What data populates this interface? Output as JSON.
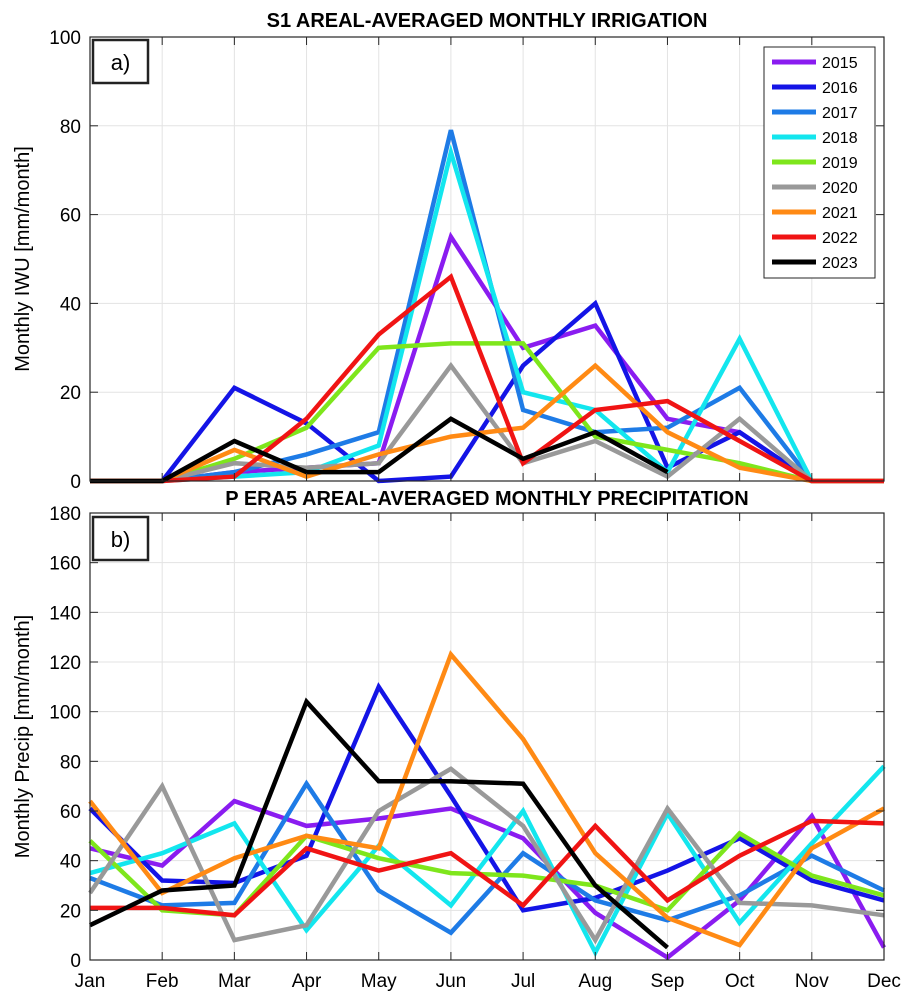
{
  "chart_data": [
    {
      "type": "line",
      "title": "S1 AREAL-AVERAGED MONTHLY IRRIGATION",
      "panel_label": "a)",
      "xlabel": "",
      "ylabel": "Monthly IWU [mm/month]",
      "categories": [
        "Jan",
        "Feb",
        "Mar",
        "Apr",
        "May",
        "Jun",
        "Jul",
        "Aug",
        "Sep",
        "Oct",
        "Nov",
        "Dec"
      ],
      "ylim": [
        0,
        100
      ],
      "yticks": [
        0,
        20,
        40,
        60,
        80,
        100
      ],
      "grid": true,
      "legend": "top-right",
      "show_xticklabels": false,
      "series": [
        {
          "name": "2015",
          "color": "#8a1cf0",
          "values": [
            0,
            0,
            2,
            3,
            4,
            55,
            30,
            35,
            14,
            11,
            0,
            0
          ]
        },
        {
          "name": "2016",
          "color": "#1414e6",
          "values": [
            0,
            0,
            21,
            13,
            0,
            1,
            26,
            40,
            3,
            11,
            0,
            0
          ]
        },
        {
          "name": "2017",
          "color": "#1e7be6",
          "values": [
            0,
            0,
            2,
            6,
            11,
            79,
            16,
            11,
            12,
            21,
            0,
            0
          ]
        },
        {
          "name": "2018",
          "color": "#13e6ee",
          "values": [
            0,
            0,
            1,
            2,
            8,
            74,
            20,
            16,
            2,
            32,
            0,
            0
          ]
        },
        {
          "name": "2019",
          "color": "#7ee61c",
          "values": [
            0,
            0,
            5,
            12,
            30,
            31,
            31,
            10,
            7,
            4,
            0,
            0
          ]
        },
        {
          "name": "2020",
          "color": "#999999",
          "values": [
            0,
            0,
            4,
            3,
            4,
            26,
            4,
            9,
            1,
            14,
            0,
            0
          ]
        },
        {
          "name": "2021",
          "color": "#ff8a14",
          "values": [
            0,
            0,
            7,
            1,
            6,
            10,
            12,
            26,
            11,
            3,
            0,
            0
          ]
        },
        {
          "name": "2022",
          "color": "#f01414",
          "values": [
            0,
            0,
            1,
            14,
            33,
            46,
            4,
            16,
            18,
            9,
            0,
            0
          ]
        },
        {
          "name": "2023",
          "color": "#000000",
          "values": [
            0,
            0,
            9,
            2,
            2,
            14,
            5,
            11,
            2,
            null,
            null,
            null
          ]
        }
      ]
    },
    {
      "type": "line",
      "title": "P ERA5 AREAL-AVERAGED MONTHLY PRECIPITATION",
      "panel_label": "b)",
      "xlabel": "",
      "ylabel": "Monthly Precip [mm/month]",
      "categories": [
        "Jan",
        "Feb",
        "Mar",
        "Apr",
        "May",
        "Jun",
        "Jul",
        "Aug",
        "Sep",
        "Oct",
        "Nov",
        "Dec"
      ],
      "ylim": [
        0,
        180
      ],
      "yticks": [
        0,
        20,
        40,
        60,
        80,
        100,
        120,
        140,
        160,
        180
      ],
      "grid": true,
      "legend": "none",
      "show_xticklabels": true,
      "series": [
        {
          "name": "2015",
          "color": "#8a1cf0",
          "values": [
            45,
            38,
            64,
            54,
            57,
            61,
            49,
            19,
            1,
            24,
            58,
            5
          ]
        },
        {
          "name": "2016",
          "color": "#1414e6",
          "values": [
            61,
            32,
            31,
            42,
            110,
            66,
            20,
            25,
            36,
            49,
            32,
            24
          ]
        },
        {
          "name": "2017",
          "color": "#1e7be6",
          "values": [
            33,
            22,
            23,
            71,
            28,
            11,
            43,
            24,
            16,
            26,
            42,
            28
          ]
        },
        {
          "name": "2018",
          "color": "#13e6ee",
          "values": [
            35,
            43,
            55,
            12,
            46,
            22,
            60,
            3,
            59,
            15,
            47,
            78
          ]
        },
        {
          "name": "2019",
          "color": "#7ee61c",
          "values": [
            48,
            20,
            18,
            50,
            41,
            35,
            34,
            30,
            20,
            51,
            34,
            26
          ]
        },
        {
          "name": "2020",
          "color": "#999999",
          "values": [
            27,
            70,
            8,
            14,
            60,
            77,
            54,
            8,
            61,
            23,
            22,
            18
          ]
        },
        {
          "name": "2021",
          "color": "#ff8a14",
          "values": [
            64,
            27,
            41,
            50,
            45,
            123,
            89,
            43,
            17,
            6,
            45,
            61
          ]
        },
        {
          "name": "2022",
          "color": "#f01414",
          "values": [
            21,
            21,
            18,
            45,
            36,
            43,
            22,
            54,
            24,
            42,
            56,
            55
          ]
        },
        {
          "name": "2023",
          "color": "#000000",
          "values": [
            14,
            28,
            30,
            104,
            72,
            72,
            71,
            30,
            5,
            null,
            null,
            null
          ]
        }
      ]
    }
  ]
}
